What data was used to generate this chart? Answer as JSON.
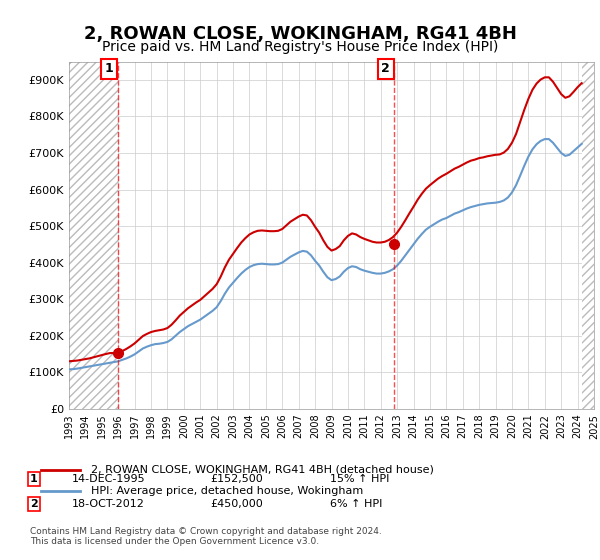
{
  "title": "2, ROWAN CLOSE, WOKINGHAM, RG41 4BH",
  "subtitle": "Price paid vs. HM Land Registry's House Price Index (HPI)",
  "title_fontsize": 13,
  "subtitle_fontsize": 10,
  "ylabel": "",
  "ylim": [
    0,
    950000
  ],
  "yticks": [
    0,
    100000,
    200000,
    300000,
    400000,
    500000,
    600000,
    700000,
    800000,
    900000
  ],
  "ytick_labels": [
    "£0",
    "£100K",
    "£200K",
    "£300K",
    "£400K",
    "£500K",
    "£600K",
    "£700K",
    "£800K",
    "£900K"
  ],
  "background_color": "#ffffff",
  "plot_bg_color": "#ffffff",
  "grid_color": "#cccccc",
  "hatch_color": "#cccccc",
  "sale1_date": 1995.96,
  "sale1_price": 152500,
  "sale1_label": "1",
  "sale2_date": 2012.8,
  "sale2_price": 450000,
  "sale2_label": "2",
  "sale1_info": "14-DEC-1995    £152,500    15% ↑ HPI",
  "sale2_info": "18-OCT-2012    £450,000    6% ↑ HPI",
  "legend_line1": "2, ROWAN CLOSE, WOKINGHAM, RG41 4BH (detached house)",
  "legend_line2": "HPI: Average price, detached house, Wokingham",
  "footnote": "Contains HM Land Registry data © Crown copyright and database right 2024.\nThis data is licensed under the Open Government Licence v3.0.",
  "red_line_color": "#cc0000",
  "blue_line_color": "#6699cc",
  "dot_color": "#cc0000",
  "hpi_data_x": [
    1993.0,
    1993.25,
    1993.5,
    1993.75,
    1994.0,
    1994.25,
    1994.5,
    1994.75,
    1995.0,
    1995.25,
    1995.5,
    1995.75,
    1996.0,
    1996.25,
    1996.5,
    1996.75,
    1997.0,
    1997.25,
    1997.5,
    1997.75,
    1998.0,
    1998.25,
    1998.5,
    1998.75,
    1999.0,
    1999.25,
    1999.5,
    1999.75,
    2000.0,
    2000.25,
    2000.5,
    2000.75,
    2001.0,
    2001.25,
    2001.5,
    2001.75,
    2002.0,
    2002.25,
    2002.5,
    2002.75,
    2003.0,
    2003.25,
    2003.5,
    2003.75,
    2004.0,
    2004.25,
    2004.5,
    2004.75,
    2005.0,
    2005.25,
    2005.5,
    2005.75,
    2006.0,
    2006.25,
    2006.5,
    2006.75,
    2007.0,
    2007.25,
    2007.5,
    2007.75,
    2008.0,
    2008.25,
    2008.5,
    2008.75,
    2009.0,
    2009.25,
    2009.5,
    2009.75,
    2010.0,
    2010.25,
    2010.5,
    2010.75,
    2011.0,
    2011.25,
    2011.5,
    2011.75,
    2012.0,
    2012.25,
    2012.5,
    2012.75,
    2013.0,
    2013.25,
    2013.5,
    2013.75,
    2014.0,
    2014.25,
    2014.5,
    2014.75,
    2015.0,
    2015.25,
    2015.5,
    2015.75,
    2016.0,
    2016.25,
    2016.5,
    2016.75,
    2017.0,
    2017.25,
    2017.5,
    2017.75,
    2018.0,
    2018.25,
    2018.5,
    2018.75,
    2019.0,
    2019.25,
    2019.5,
    2019.75,
    2020.0,
    2020.25,
    2020.5,
    2020.75,
    2021.0,
    2021.25,
    2021.5,
    2021.75,
    2022.0,
    2022.25,
    2022.5,
    2022.75,
    2023.0,
    2023.25,
    2023.5,
    2023.75,
    2024.0,
    2024.25
  ],
  "hpi_data_y": [
    108000,
    108500,
    110000,
    112000,
    114000,
    116000,
    118000,
    120000,
    122000,
    124000,
    126000,
    128000,
    130000,
    134000,
    138000,
    143000,
    149000,
    157000,
    165000,
    170000,
    174000,
    177000,
    178000,
    180000,
    183000,
    190000,
    200000,
    210000,
    218000,
    226000,
    232000,
    238000,
    244000,
    252000,
    260000,
    268000,
    278000,
    295000,
    315000,
    332000,
    345000,
    358000,
    370000,
    380000,
    388000,
    393000,
    396000,
    397000,
    396000,
    395000,
    395000,
    396000,
    400000,
    408000,
    416000,
    422000,
    428000,
    432000,
    430000,
    420000,
    405000,
    392000,
    375000,
    360000,
    352000,
    355000,
    362000,
    375000,
    385000,
    390000,
    388000,
    382000,
    378000,
    375000,
    372000,
    370000,
    370000,
    372000,
    376000,
    382000,
    392000,
    405000,
    420000,
    435000,
    450000,
    465000,
    478000,
    490000,
    498000,
    505000,
    512000,
    518000,
    522000,
    528000,
    534000,
    538000,
    543000,
    548000,
    552000,
    555000,
    558000,
    560000,
    562000,
    563000,
    564000,
    566000,
    570000,
    578000,
    592000,
    612000,
    638000,
    665000,
    690000,
    710000,
    724000,
    733000,
    738000,
    738000,
    728000,
    714000,
    700000,
    692000,
    695000,
    705000,
    715000,
    725000
  ],
  "red_data_x": [
    1993.0,
    1993.25,
    1993.5,
    1993.75,
    1994.0,
    1994.25,
    1994.5,
    1994.75,
    1995.0,
    1995.25,
    1995.5,
    1995.75,
    1996.0,
    1996.25,
    1996.5,
    1996.75,
    1997.0,
    1997.25,
    1997.5,
    1997.75,
    1998.0,
    1998.25,
    1998.5,
    1998.75,
    1999.0,
    1999.25,
    1999.5,
    1999.75,
    2000.0,
    2000.25,
    2000.5,
    2000.75,
    2001.0,
    2001.25,
    2001.5,
    2001.75,
    2002.0,
    2002.25,
    2002.5,
    2002.75,
    2003.0,
    2003.25,
    2003.5,
    2003.75,
    2004.0,
    2004.25,
    2004.5,
    2004.75,
    2005.0,
    2005.25,
    2005.5,
    2005.75,
    2006.0,
    2006.25,
    2006.5,
    2006.75,
    2007.0,
    2007.25,
    2007.5,
    2007.75,
    2008.0,
    2008.25,
    2008.5,
    2008.75,
    2009.0,
    2009.25,
    2009.5,
    2009.75,
    2010.0,
    2010.25,
    2010.5,
    2010.75,
    2011.0,
    2011.25,
    2011.5,
    2011.75,
    2012.0,
    2012.25,
    2012.5,
    2012.75,
    2013.0,
    2013.25,
    2013.5,
    2013.75,
    2014.0,
    2014.25,
    2014.5,
    2014.75,
    2015.0,
    2015.25,
    2015.5,
    2015.75,
    2016.0,
    2016.25,
    2016.5,
    2016.75,
    2017.0,
    2017.25,
    2017.5,
    2017.75,
    2018.0,
    2018.25,
    2018.5,
    2018.75,
    2019.0,
    2019.25,
    2019.5,
    2019.75,
    2020.0,
    2020.25,
    2020.5,
    2020.75,
    2021.0,
    2021.25,
    2021.5,
    2021.75,
    2022.0,
    2022.25,
    2022.5,
    2022.75,
    2023.0,
    2023.25,
    2023.5,
    2023.75,
    2024.0,
    2024.25
  ],
  "red_data_y": [
    130000,
    131000,
    132000,
    134000,
    136000,
    138000,
    141000,
    144000,
    147000,
    150000,
    152500,
    152500,
    152500,
    158000,
    164000,
    171000,
    179000,
    189000,
    199000,
    205000,
    210000,
    213000,
    215000,
    217000,
    221000,
    230000,
    242000,
    255000,
    265000,
    275000,
    283000,
    291000,
    298000,
    308000,
    318000,
    328000,
    341000,
    362000,
    387000,
    408000,
    424000,
    440000,
    455000,
    467000,
    477000,
    483000,
    487000,
    488000,
    487000,
    486000,
    486000,
    487000,
    492000,
    502000,
    512000,
    519000,
    526000,
    531000,
    529000,
    516000,
    498000,
    482000,
    461000,
    443000,
    433000,
    437000,
    445000,
    461000,
    473000,
    480000,
    477000,
    470000,
    465000,
    461000,
    457000,
    455000,
    455000,
    457000,
    462000,
    470000,
    482000,
    498000,
    516000,
    535000,
    553000,
    572000,
    588000,
    602000,
    612000,
    621000,
    630000,
    637000,
    643000,
    650000,
    657000,
    662000,
    668000,
    674000,
    679000,
    682000,
    686000,
    688000,
    691000,
    693000,
    695000,
    696000,
    701000,
    711000,
    728000,
    752000,
    785000,
    818000,
    848000,
    873000,
    890000,
    901000,
    907000,
    907000,
    895000,
    878000,
    861000,
    851000,
    855000,
    867000,
    880000,
    891000
  ],
  "xmin": 1993,
  "xmax": 2025,
  "xticks": [
    1993,
    1994,
    1995,
    1996,
    1997,
    1998,
    1999,
    2000,
    2001,
    2002,
    2003,
    2004,
    2005,
    2006,
    2007,
    2008,
    2009,
    2010,
    2011,
    2012,
    2013,
    2014,
    2015,
    2016,
    2017,
    2018,
    2019,
    2020,
    2021,
    2022,
    2023,
    2024,
    2025
  ]
}
